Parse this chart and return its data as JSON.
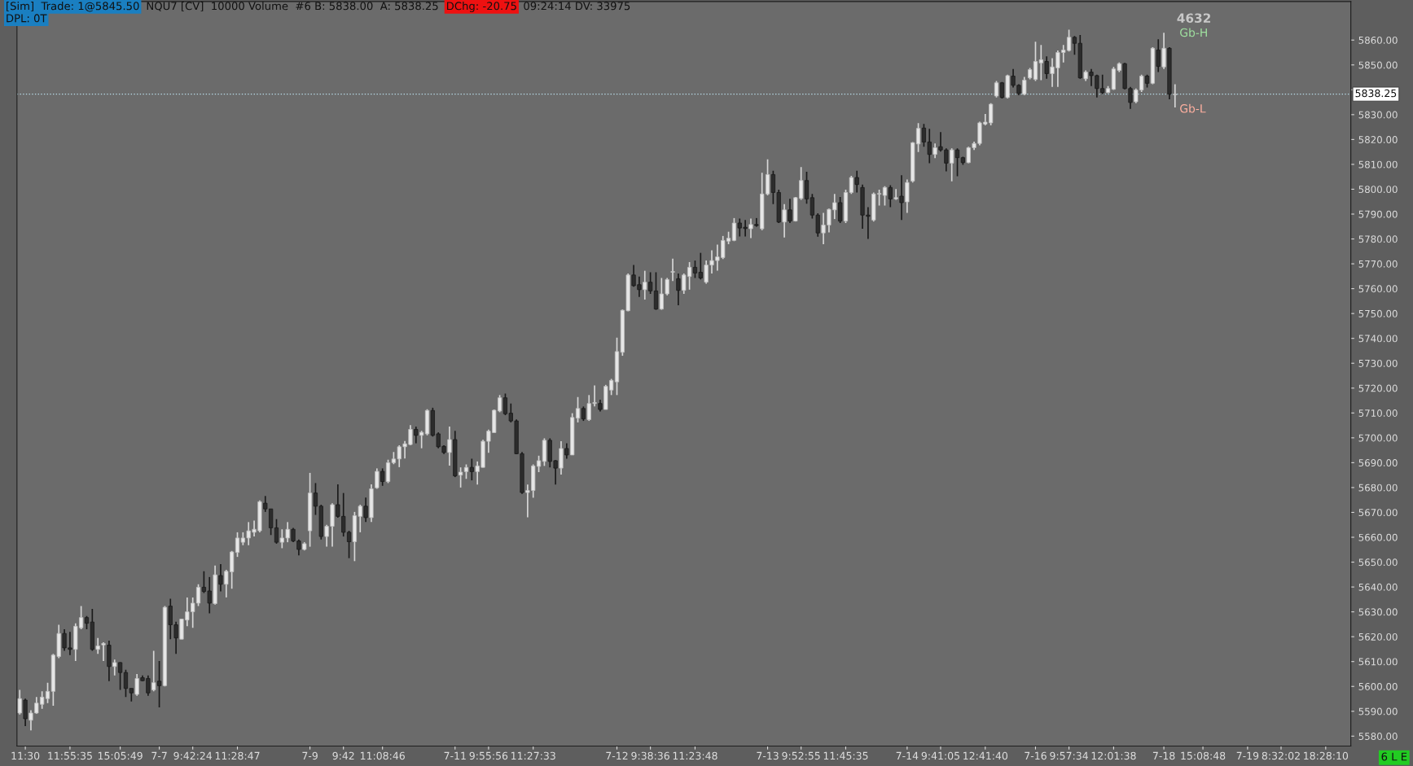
{
  "chart_data": {
    "type": "candlestick",
    "categories": [
      null,
      "11:30",
      null,
      null,
      null,
      null,
      null,
      null,
      null,
      "11:55:35",
      null,
      null,
      null,
      null,
      null,
      null,
      null,
      null,
      "15:05:49",
      null,
      null,
      null,
      null,
      null,
      null,
      "7-7",
      null,
      null,
      null,
      null,
      null,
      "9:42:24",
      null,
      null,
      null,
      null,
      null,
      null,
      null,
      "11:28:47",
      null,
      null,
      null,
      null,
      null,
      null,
      null,
      null,
      null,
      null,
      null,
      null,
      "7-9",
      null,
      null,
      null,
      null,
      null,
      "9:42",
      null,
      null,
      null,
      null,
      null,
      null,
      "11:08:46",
      null,
      null,
      null,
      null,
      null,
      null,
      null,
      null,
      null,
      null,
      null,
      null,
      "7-11",
      null,
      null,
      null,
      null,
      null,
      "9:55:56",
      null,
      null,
      null,
      null,
      null,
      null,
      null,
      "11:27:33",
      null,
      null,
      null,
      null,
      null,
      null,
      null,
      null,
      null,
      null,
      null,
      null,
      null,
      null,
      "7-12",
      null,
      null,
      null,
      null,
      null,
      "9:38:36",
      null,
      null,
      null,
      null,
      null,
      null,
      null,
      "11:23:48",
      null,
      null,
      null,
      null,
      null,
      null,
      null,
      null,
      null,
      null,
      null,
      null,
      "7-13",
      null,
      null,
      null,
      null,
      null,
      "9:52:55",
      null,
      null,
      null,
      null,
      null,
      null,
      null,
      "11:45:35",
      null,
      null,
      null,
      null,
      null,
      null,
      null,
      null,
      null,
      null,
      "7-14",
      null,
      null,
      null,
      null,
      null,
      "9:41:05",
      null,
      null,
      null,
      null,
      null,
      null,
      null,
      "12:41:40",
      null,
      null,
      null,
      null,
      null,
      null,
      null,
      null,
      "7-16",
      null,
      null,
      null,
      null,
      null,
      "9:57:34",
      null,
      null,
      null,
      null,
      null,
      null,
      null,
      "12:01:38",
      null,
      null,
      null,
      null,
      null,
      null,
      null,
      null,
      "7-18",
      null,
      null,
      null,
      null,
      null,
      null,
      "15:08:48",
      null,
      null,
      null,
      null,
      null,
      null,
      null,
      "7-19",
      null,
      null,
      null,
      null,
      null,
      "8:32:02",
      null,
      null,
      null,
      null,
      null,
      null,
      null,
      "18:28:10",
      null,
      null,
      null,
      null
    ],
    "ohlc": [
      [
        5589.3,
        5598.6,
        5588.7,
        5595.1
      ],
      [
        5594.5,
        5595.1,
        5584.0,
        5587.0
      ],
      [
        5586.4,
        5590.4,
        5582.3,
        5589.3
      ],
      [
        5589.3,
        5595.7,
        5589.0,
        5593.3
      ],
      [
        5592.8,
        5598.0,
        5591.0,
        5595.7
      ],
      [
        5595.1,
        5601.5,
        5593.3,
        5598.0
      ],
      [
        5598.0,
        5613.1,
        5592.2,
        5612.6
      ],
      [
        5612.0,
        5624.8,
        5611.4,
        5621.3
      ],
      [
        5621.3,
        5623.0,
        5614.3,
        5615.5
      ],
      [
        5615.5,
        5621.9,
        5612.6,
        5614.9
      ],
      [
        5614.9,
        5625.4,
        5610.2,
        5624.2
      ],
      [
        5623.6,
        5632.3,
        5623.0,
        5627.7
      ],
      [
        5627.7,
        5628.3,
        5623.0,
        5625.4
      ],
      [
        5625.9,
        5631.2,
        5614.3,
        5614.9
      ],
      [
        5614.9,
        5619.5,
        5613.1,
        5616.3
      ],
      [
        5616.7,
        5617.8,
        5610.2,
        5617.3
      ],
      [
        5616.6,
        5618.4,
        5602.1,
        5608.0
      ],
      [
        5608.0,
        5610.8,
        5604.4,
        5609.6
      ],
      [
        5609.6,
        5609.7,
        5598.6,
        5605.6
      ],
      [
        5605.6,
        5606.7,
        5595.7,
        5599.2
      ],
      [
        5599.2,
        5599.2,
        5593.9,
        5597.4
      ],
      [
        5596.8,
        5605.0,
        5596.2,
        5603.2
      ],
      [
        5603.5,
        5604.4,
        5602.1,
        5602.3
      ],
      [
        5603.2,
        5604.4,
        5596.2,
        5597.4
      ],
      [
        5598.6,
        5614.3,
        5598.0,
        5601.5
      ],
      [
        5602.1,
        5610.2,
        5591.6,
        5600.3
      ],
      [
        5600.3,
        5632.3,
        5600.0,
        5631.8
      ],
      [
        5632.3,
        5635.3,
        5619.0,
        5624.8
      ],
      [
        5624.8,
        5626.0,
        5613.1,
        5619.5
      ],
      [
        5619.0,
        5627.1,
        5619.0,
        5627.1
      ],
      [
        5626.7,
        5635.8,
        5624.2,
        5630.0
      ],
      [
        5630.0,
        5635.8,
        5623.6,
        5633.5
      ],
      [
        5633.5,
        5641.1,
        5632.3,
        5639.9
      ],
      [
        5639.9,
        5646.3,
        5637.6,
        5638.2
      ],
      [
        5638.4,
        5644.0,
        5629.4,
        5633.5
      ],
      [
        5633.3,
        5648.6,
        5632.9,
        5644.9
      ],
      [
        5644.6,
        5649.2,
        5638.2,
        5641.1
      ],
      [
        5641.1,
        5646.9,
        5635.8,
        5646.3
      ],
      [
        5646.1,
        5654.5,
        5639.3,
        5654.1
      ],
      [
        5653.9,
        5662.0,
        5652.1,
        5659.7
      ],
      [
        5658.0,
        5662.0,
        5656.8,
        5659.7
      ],
      [
        5659.7,
        5666.1,
        5656.8,
        5662.6
      ],
      [
        5662.0,
        5666.7,
        5660.3,
        5663.2
      ],
      [
        5662.6,
        5674.8,
        5662.0,
        5674.3
      ],
      [
        5673.7,
        5676.6,
        5670.2,
        5671.4
      ],
      [
        5671.4,
        5671.4,
        5660.9,
        5663.8
      ],
      [
        5663.8,
        5667.3,
        5657.4,
        5658.0
      ],
      [
        5658.0,
        5663.2,
        5655.6,
        5659.7
      ],
      [
        5659.7,
        5666.1,
        5658.0,
        5663.2
      ],
      [
        5663.2,
        5663.8,
        5658.0,
        5658.5
      ],
      [
        5658.5,
        5659.1,
        5652.7,
        5655.1
      ],
      [
        5655.1,
        5658.0,
        5654.7,
        5657.4
      ],
      [
        5662.6,
        5685.9,
        5656.2,
        5677.8
      ],
      [
        5677.8,
        5681.8,
        5669.0,
        5672.5
      ],
      [
        5672.5,
        5673.1,
        5659.1,
        5660.3
      ],
      [
        5660.3,
        5665.0,
        5656.2,
        5664.4
      ],
      [
        5664.4,
        5673.7,
        5656.2,
        5673.1
      ],
      [
        5673.1,
        5681.3,
        5667.9,
        5668.4
      ],
      [
        5668.4,
        5677.8,
        5660.3,
        5662.0
      ],
      [
        5662.0,
        5662.6,
        5651.6,
        5658.2
      ],
      [
        5658.2,
        5670.2,
        5650.4,
        5668.7
      ],
      [
        5668.4,
        5673.1,
        5662.0,
        5672.5
      ],
      [
        5672.5,
        5676.0,
        5666.1,
        5667.9
      ],
      [
        5667.9,
        5681.3,
        5666.1,
        5679.5
      ],
      [
        5679.9,
        5687.7,
        5679.5,
        5686.5
      ],
      [
        5686.5,
        5687.7,
        5680.7,
        5682.4
      ],
      [
        5682.4,
        5691.2,
        5681.8,
        5690.0
      ],
      [
        5690.0,
        5694.3,
        5689.4,
        5691.5
      ],
      [
        5691.5,
        5697.0,
        5688.2,
        5696.4
      ],
      [
        5696.4,
        5698.7,
        5691.7,
        5697.6
      ],
      [
        5697.3,
        5705.1,
        5697.0,
        5703.4
      ],
      [
        5703.4,
        5704.5,
        5697.8,
        5701.0
      ],
      [
        5701.0,
        5702.8,
        5695.8,
        5702.2
      ],
      [
        5701.6,
        5711.5,
        5701.0,
        5711.0
      ],
      [
        5711.0,
        5712.1,
        5700.5,
        5701.0
      ],
      [
        5701.6,
        5702.2,
        5695.8,
        5696.4
      ],
      [
        5696.6,
        5697.0,
        5693.5,
        5694.1
      ],
      [
        5694.1,
        5704.5,
        5688.8,
        5699.3
      ],
      [
        5699.3,
        5702.8,
        5684.2,
        5684.7
      ],
      [
        5685.0,
        5688.1,
        5680.0,
        5686.2
      ],
      [
        5686.4,
        5689.3,
        5683.5,
        5688.1
      ],
      [
        5688.1,
        5691.6,
        5682.9,
        5686.4
      ],
      [
        5686.4,
        5690.5,
        5681.2,
        5688.7
      ],
      [
        5688.1,
        5699.2,
        5688.1,
        5698.6
      ],
      [
        5698.6,
        5703.3,
        5694.0,
        5702.7
      ],
      [
        5702.1,
        5711.4,
        5702.1,
        5711.1
      ],
      [
        5710.8,
        5717.2,
        5710.3,
        5716.1
      ],
      [
        5716.1,
        5717.8,
        5709.1,
        5709.7
      ],
      [
        5709.9,
        5713.8,
        5706.2,
        5706.8
      ],
      [
        5706.8,
        5707.4,
        5693.4,
        5693.6
      ],
      [
        5693.6,
        5694.3,
        5677.4,
        5678.0
      ],
      [
        5678.0,
        5681.2,
        5668.0,
        5678.8
      ],
      [
        5678.8,
        5689.3,
        5675.9,
        5688.7
      ],
      [
        5688.5,
        5692.8,
        5686.2,
        5690.8
      ],
      [
        5690.5,
        5699.8,
        5688.7,
        5699.0
      ],
      [
        5699.0,
        5699.8,
        5688.1,
        5690.5
      ],
      [
        5690.8,
        5691.0,
        5681.2,
        5687.8
      ],
      [
        5687.8,
        5698.6,
        5685.2,
        5695.7
      ],
      [
        5695.7,
        5697.8,
        5691.6,
        5693.1
      ],
      [
        5693.1,
        5709.9,
        5693.1,
        5708.2
      ],
      [
        5707.9,
        5716.4,
        5706.2,
        5711.8
      ],
      [
        5711.8,
        5712.6,
        5706.8,
        5707.6
      ],
      [
        5707.3,
        5717.2,
        5706.8,
        5713.8
      ],
      [
        5713.8,
        5721.1,
        5712.6,
        5714.2
      ],
      [
        5713.8,
        5715.3,
        5710.6,
        5711.4
      ],
      [
        5711.4,
        5721.3,
        5711.4,
        5720.7
      ],
      [
        5719.2,
        5723.7,
        5717.2,
        5723.1
      ],
      [
        5722.5,
        5740.3,
        5717.2,
        5734.7
      ],
      [
        5734.4,
        5751.6,
        5733.0,
        5751.3
      ],
      [
        5751.1,
        5766.1,
        5750.9,
        5765.5
      ],
      [
        5765.5,
        5769.5,
        5760.8,
        5761.2
      ],
      [
        5761.6,
        5764.9,
        5756.7,
        5759.6
      ],
      [
        5759.6,
        5767.2,
        5755.6,
        5762.6
      ],
      [
        5762.6,
        5766.6,
        5757.9,
        5759.1
      ],
      [
        5759.1,
        5766.6,
        5751.5,
        5751.8
      ],
      [
        5751.8,
        5764.3,
        5751.5,
        5757.9
      ],
      [
        5757.9,
        5764.3,
        5757.3,
        5763.7
      ],
      [
        5766.6,
        5772.1,
        5763.1,
        5766.9
      ],
      [
        5764.0,
        5766.1,
        5753.3,
        5759.3
      ],
      [
        5759.3,
        5766.1,
        5757.9,
        5765.5
      ],
      [
        5764.9,
        5770.7,
        5759.6,
        5768.6
      ],
      [
        5768.6,
        5771.3,
        5764.3,
        5766.3
      ],
      [
        5766.6,
        5774.4,
        5763.7,
        5764.3
      ],
      [
        5762.6,
        5771.3,
        5762.0,
        5769.5
      ],
      [
        5769.5,
        5775.4,
        5766.1,
        5771.3
      ],
      [
        5771.3,
        5777.7,
        5767.2,
        5772.8
      ],
      [
        5772.5,
        5781.2,
        5771.9,
        5779.4
      ],
      [
        5779.1,
        5782.9,
        5777.9,
        5780.3
      ],
      [
        5779.4,
        5788.4,
        5779.1,
        5786.4
      ],
      [
        5786.4,
        5788.2,
        5781.0,
        5784.4
      ],
      [
        5784.7,
        5787.6,
        5781.0,
        5784.2
      ],
      [
        5784.1,
        5788.2,
        5780.3,
        5785.8
      ],
      [
        5785.8,
        5788.4,
        5784.9,
        5785.4
      ],
      [
        5784.1,
        5806.6,
        5783.5,
        5798.1
      ],
      [
        5798.1,
        5812.0,
        5797.5,
        5805.9
      ],
      [
        5805.9,
        5807.4,
        5794.0,
        5798.7
      ],
      [
        5798.7,
        5799.8,
        5786.4,
        5786.8
      ],
      [
        5786.8,
        5794.0,
        5780.6,
        5791.7
      ],
      [
        5791.7,
        5796.1,
        5786.4,
        5787.2
      ],
      [
        5787.2,
        5796.9,
        5787.0,
        5796.6
      ],
      [
        5796.3,
        5808.9,
        5795.7,
        5803.5
      ],
      [
        5803.5,
        5807.0,
        5794.2,
        5796.1
      ],
      [
        5796.6,
        5798.1,
        5788.2,
        5789.6
      ],
      [
        5789.6,
        5790.3,
        5780.9,
        5782.4
      ],
      [
        5782.4,
        5790.5,
        5777.9,
        5785.6
      ],
      [
        5785.6,
        5792.2,
        5782.6,
        5791.9
      ],
      [
        5791.7,
        5798.1,
        5788.0,
        5794.6
      ],
      [
        5794.6,
        5796.9,
        5786.4,
        5787.2
      ],
      [
        5787.2,
        5799.8,
        5786.4,
        5798.7
      ],
      [
        5798.7,
        5805.4,
        5798.1,
        5804.7
      ],
      [
        5804.7,
        5807.4,
        5798.7,
        5801.9
      ],
      [
        5800.7,
        5801.9,
        5784.1,
        5789.6
      ],
      [
        5789.6,
        5792.8,
        5780.0,
        5789.1
      ],
      [
        5787.6,
        5798.7,
        5787.0,
        5798.1
      ],
      [
        5798.0,
        5799.8,
        5793.4,
        5798.3
      ],
      [
        5797.5,
        5801.2,
        5793.4,
        5800.7
      ],
      [
        5800.7,
        5801.6,
        5792.8,
        5796.1
      ],
      [
        5796.1,
        5800.1,
        5795.7,
        5796.6
      ],
      [
        5797.2,
        5805.6,
        5787.6,
        5794.6
      ],
      [
        5794.9,
        5803.9,
        5790.5,
        5802.7
      ],
      [
        5803.3,
        5819.0,
        5802.7,
        5818.7
      ],
      [
        5818.2,
        5826.6,
        5815.0,
        5824.5
      ],
      [
        5824.6,
        5826.3,
        5817.1,
        5819.0
      ],
      [
        5819.0,
        5824.3,
        5810.5,
        5814.0
      ],
      [
        5814.0,
        5818.4,
        5812.5,
        5816.7
      ],
      [
        5817.1,
        5823.0,
        5815.1,
        5815.8
      ],
      [
        5815.8,
        5816.4,
        5807.2,
        5810.5
      ],
      [
        5810.5,
        5816.4,
        5803.2,
        5815.8
      ],
      [
        5815.8,
        5816.4,
        5805.2,
        5812.7
      ],
      [
        5812.7,
        5813.1,
        5809.8,
        5810.7
      ],
      [
        5810.7,
        5817.1,
        5810.5,
        5816.7
      ],
      [
        5816.7,
        5819.1,
        5815.8,
        5818.4
      ],
      [
        5818.4,
        5827.2,
        5817.7,
        5826.7
      ],
      [
        5826.2,
        5830.3,
        5825.7,
        5827.0
      ],
      [
        5826.7,
        5834.6,
        5825.7,
        5834.2
      ],
      [
        5837.5,
        5843.5,
        5836.9,
        5842.8
      ],
      [
        5842.8,
        5843.1,
        5836.5,
        5836.9
      ],
      [
        5836.9,
        5846.1,
        5836.5,
        5845.7
      ],
      [
        5845.5,
        5848.4,
        5840.9,
        5841.8
      ],
      [
        5841.8,
        5842.2,
        5837.8,
        5838.6
      ],
      [
        5838.2,
        5845.2,
        5837.8,
        5843.9
      ],
      [
        5844.8,
        5848.8,
        5844.2,
        5848.1
      ],
      [
        5844.2,
        5859.3,
        5843.5,
        5851.4
      ],
      [
        5850.8,
        5858.0,
        5843.9,
        5852.1
      ],
      [
        5851.4,
        5853.4,
        5844.4,
        5846.5
      ],
      [
        5846.5,
        5852.7,
        5841.2,
        5849.2
      ],
      [
        5848.8,
        5855.8,
        5841.2,
        5855.0
      ],
      [
        5855.0,
        5858.0,
        5851.0,
        5856.0
      ],
      [
        5855.8,
        5864.2,
        5855.4,
        5861.1
      ],
      [
        5861.1,
        5861.6,
        5854.1,
        5858.7
      ],
      [
        5858.7,
        5862.0,
        5844.4,
        5844.8
      ],
      [
        5844.4,
        5847.8,
        5843.5,
        5847.1
      ],
      [
        5847.1,
        5848.4,
        5841.5,
        5845.7
      ],
      [
        5845.7,
        5846.1,
        5836.9,
        5840.5
      ],
      [
        5840.5,
        5846.1,
        5838.2,
        5838.9
      ],
      [
        5838.9,
        5841.5,
        5838.6,
        5840.5
      ],
      [
        5840.2,
        5849.2,
        5839.9,
        5848.4
      ],
      [
        5847.8,
        5851.0,
        5847.1,
        5850.5
      ],
      [
        5850.5,
        5850.8,
        5840.2,
        5840.5
      ],
      [
        5840.5,
        5841.2,
        5832.3,
        5834.9
      ],
      [
        5835.2,
        5840.5,
        5834.6,
        5839.9
      ],
      [
        5839.9,
        5846.1,
        5839.1,
        5845.5
      ],
      [
        5845.5,
        5846.1,
        5840.9,
        5842.6
      ],
      [
        5842.6,
        5857.1,
        5842.2,
        5856.7
      ],
      [
        5856.0,
        5860.3,
        5847.1,
        5849.4
      ],
      [
        5849.2,
        5862.9,
        5848.4,
        5856.7
      ],
      [
        5856.7,
        5857.1,
        5836.2,
        5838.2
      ],
      [
        5838.0,
        5842.2,
        5832.9,
        5838.25
      ],
      null,
      null,
      null,
      null,
      null,
      null,
      null,
      null,
      null,
      null,
      null,
      null,
      null,
      null,
      null,
      null,
      null,
      null,
      null,
      null,
      null,
      null,
      null,
      null,
      null,
      null,
      null,
      null,
      null,
      null,
      null
    ],
    "ylim": [
      5576,
      5875.5
    ],
    "yticks": [
      {
        "value": 5580,
        "label": "5580.00"
      },
      {
        "value": 5590,
        "label": "5590.00"
      },
      {
        "value": 5600,
        "label": "5600.00"
      },
      {
        "value": 5610,
        "label": "5610.00"
      },
      {
        "value": 5620,
        "label": "5620.00"
      },
      {
        "value": 5630,
        "label": "5630.00"
      },
      {
        "value": 5640,
        "label": "5640.00"
      },
      {
        "value": 5650,
        "label": "5650.00"
      },
      {
        "value": 5660,
        "label": "5660.00"
      },
      {
        "value": 5670,
        "label": "5670.00"
      },
      {
        "value": 5680,
        "label": "5680.00"
      },
      {
        "value": 5690,
        "label": "5690.00"
      },
      {
        "value": 5700,
        "label": "5700.00"
      },
      {
        "value": 5710,
        "label": "5710.00"
      },
      {
        "value": 5720,
        "label": "5720.00"
      },
      {
        "value": 5730,
        "label": "5730.00"
      },
      {
        "value": 5740,
        "label": "5740.00"
      },
      {
        "value": 5750,
        "label": "5750.00"
      },
      {
        "value": 5760,
        "label": "5760.00"
      },
      {
        "value": 5770,
        "label": "5770.00"
      },
      {
        "value": 5780,
        "label": "5780.00"
      },
      {
        "value": 5790,
        "label": "5790.00"
      },
      {
        "value": 5800,
        "label": "5800.00"
      },
      {
        "value": 5810,
        "label": "5810.00"
      },
      {
        "value": 5820,
        "label": "5820.00"
      },
      {
        "value": 5830,
        "label": "5830.00"
      },
      {
        "value": 5840,
        "label": null
      },
      {
        "value": 5850,
        "label": "5850.00"
      },
      {
        "value": 5860,
        "label": "5860.00"
      }
    ],
    "ref_lines": [
      {
        "axis": "y",
        "value": 5838.25,
        "label": "5838.25",
        "color": "#b8dce8",
        "line_style": "dotted"
      }
    ],
    "annotations": [
      "[Sim]  Trade: 1@5845.50",
      "NQU7 [CV]  10000 Volume  #6 B: 5838.00  A: 5838.25",
      "DChg: -20.75",
      "09:24:14 DV: 33975",
      "DPL: 0T",
      "4632",
      "6 L E",
      "Gb-H",
      "Gb-L"
    ],
    "grid": false
  }
}
